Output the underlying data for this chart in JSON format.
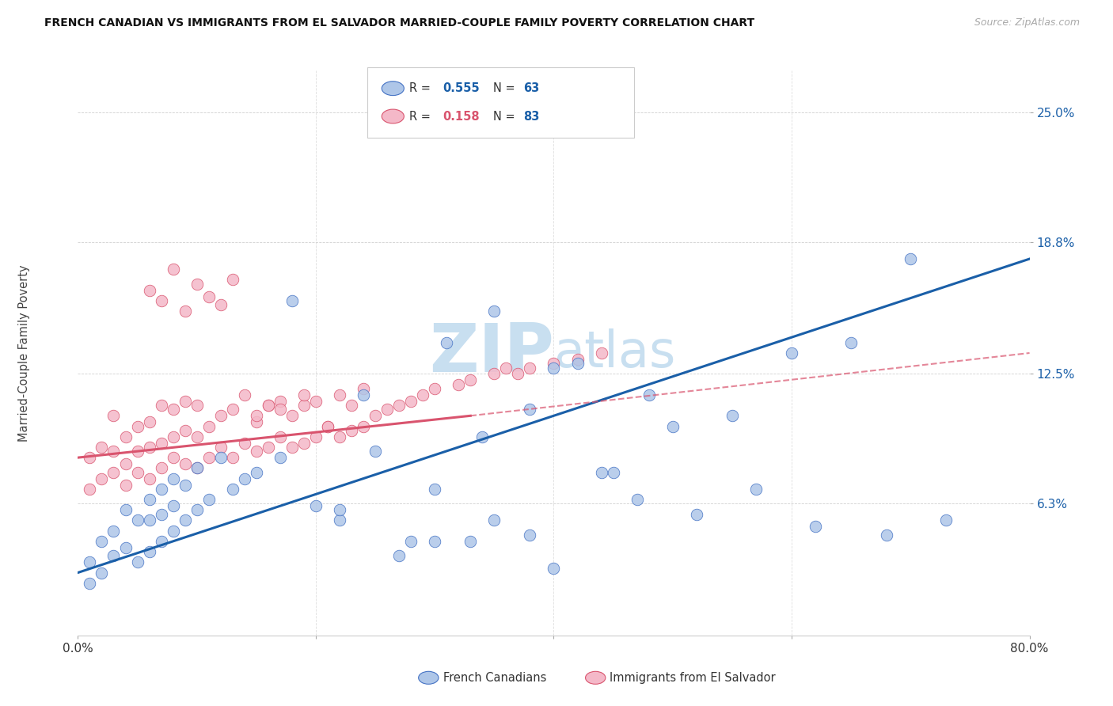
{
  "title": "FRENCH CANADIAN VS IMMIGRANTS FROM EL SALVADOR MARRIED-COUPLE FAMILY POVERTY CORRELATION CHART",
  "source": "Source: ZipAtlas.com",
  "ylabel": "Married-Couple Family Poverty",
  "ytick_labels": [
    "6.3%",
    "12.5%",
    "18.8%",
    "25.0%"
  ],
  "ytick_values": [
    6.3,
    12.5,
    18.8,
    25.0
  ],
  "xlim": [
    0,
    80
  ],
  "ylim": [
    0,
    27
  ],
  "legend_series1_label": "French Canadians",
  "legend_series1_r": "0.555",
  "legend_series1_n": "63",
  "legend_series2_label": "Immigrants from El Salvador",
  "legend_series2_r": "0.158",
  "legend_series2_n": "83",
  "blue_color": "#aec6e8",
  "blue_edge_color": "#4472c4",
  "pink_color": "#f4b8c8",
  "pink_edge_color": "#d9546e",
  "blue_line_color": "#1a5fa8",
  "pink_line_color": "#d9546e",
  "watermark_color": "#c8dff0",
  "background_color": "#ffffff",
  "grid_color": "#d0d0d0",
  "blue_x": [
    1,
    1,
    2,
    2,
    3,
    3,
    4,
    4,
    5,
    5,
    6,
    6,
    6,
    7,
    7,
    7,
    8,
    8,
    8,
    9,
    9,
    10,
    10,
    11,
    12,
    13,
    14,
    15,
    17,
    18,
    20,
    22,
    24,
    27,
    30,
    31,
    33,
    35,
    38,
    40,
    42,
    45,
    48,
    50,
    52,
    55,
    57,
    60,
    62,
    65,
    68,
    70,
    73,
    35,
    22,
    25,
    28,
    30,
    34,
    40,
    38,
    44,
    47
  ],
  "blue_y": [
    2.5,
    3.5,
    3.0,
    4.5,
    3.8,
    5.0,
    4.2,
    6.0,
    3.5,
    5.5,
    4.0,
    5.5,
    6.5,
    4.5,
    5.8,
    7.0,
    5.0,
    6.2,
    7.5,
    5.5,
    7.2,
    6.0,
    8.0,
    6.5,
    8.5,
    7.0,
    7.5,
    7.8,
    8.5,
    16.0,
    6.2,
    5.5,
    11.5,
    3.8,
    7.0,
    14.0,
    4.5,
    5.5,
    4.8,
    3.2,
    13.0,
    7.8,
    11.5,
    10.0,
    5.8,
    10.5,
    7.0,
    13.5,
    5.2,
    14.0,
    4.8,
    18.0,
    5.5,
    15.5,
    6.0,
    8.8,
    4.5,
    4.5,
    9.5,
    12.8,
    10.8,
    7.8,
    6.5
  ],
  "pink_x": [
    1,
    1,
    2,
    2,
    3,
    3,
    3,
    4,
    4,
    4,
    5,
    5,
    5,
    6,
    6,
    6,
    7,
    7,
    7,
    8,
    8,
    8,
    9,
    9,
    9,
    10,
    10,
    10,
    11,
    11,
    12,
    12,
    13,
    13,
    14,
    14,
    15,
    15,
    16,
    16,
    17,
    17,
    18,
    18,
    19,
    19,
    20,
    20,
    21,
    22,
    22,
    23,
    23,
    24,
    24,
    25,
    26,
    27,
    28,
    29,
    30,
    32,
    33,
    35,
    36,
    37,
    38,
    40,
    42,
    44,
    6,
    7,
    8,
    9,
    10,
    11,
    12,
    13,
    15,
    16,
    17,
    19,
    21
  ],
  "pink_y": [
    7.0,
    8.5,
    7.5,
    9.0,
    7.8,
    8.8,
    10.5,
    7.2,
    8.2,
    9.5,
    7.8,
    8.8,
    10.0,
    7.5,
    9.0,
    10.2,
    8.0,
    9.2,
    11.0,
    8.5,
    9.5,
    10.8,
    8.2,
    9.8,
    11.2,
    8.0,
    9.5,
    11.0,
    8.5,
    10.0,
    9.0,
    10.5,
    8.5,
    10.8,
    9.2,
    11.5,
    8.8,
    10.2,
    9.0,
    11.0,
    9.5,
    11.2,
    9.0,
    10.5,
    9.2,
    11.0,
    9.5,
    11.2,
    10.0,
    9.5,
    11.5,
    9.8,
    11.0,
    10.0,
    11.8,
    10.5,
    10.8,
    11.0,
    11.2,
    11.5,
    11.8,
    12.0,
    12.2,
    12.5,
    12.8,
    12.5,
    12.8,
    13.0,
    13.2,
    13.5,
    16.5,
    16.0,
    17.5,
    15.5,
    16.8,
    16.2,
    15.8,
    17.0,
    10.5,
    11.0,
    10.8,
    11.5,
    10.0
  ]
}
